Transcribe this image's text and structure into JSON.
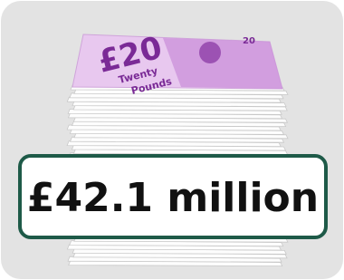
{
  "banknote": {
    "denomination": "£20",
    "corner": "20",
    "words": [
      "Twenty",
      "Pounds"
    ]
  },
  "label": "£42.1 million"
}
